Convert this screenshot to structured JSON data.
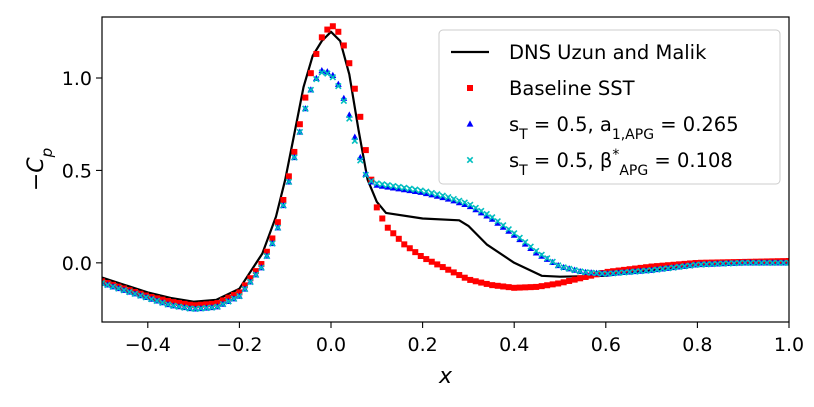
{
  "chart_data": {
    "type": "line",
    "title": "",
    "xlabel": "x",
    "ylabel": "−C_p",
    "xlim": [
      -0.5,
      1.0
    ],
    "ylim": [
      -0.32,
      1.33
    ],
    "xticks": [
      -0.4,
      -0.2,
      0.0,
      0.2,
      0.4,
      0.6,
      0.8,
      1.0
    ],
    "xtick_labels": [
      "−0.4",
      "−0.2",
      "0.0",
      "0.2",
      "0.4",
      "0.6",
      "0.8",
      "1.0"
    ],
    "yticks": [
      0.0,
      0.5,
      1.0
    ],
    "ytick_labels": [
      "0.0",
      "0.5",
      "1.0"
    ],
    "grid": false,
    "legend_position": "top-right",
    "series": [
      {
        "name": "DNS Uzun and Malik",
        "marker": "line",
        "color": "#000000",
        "x": [
          -0.5,
          -0.45,
          -0.4,
          -0.35,
          -0.3,
          -0.25,
          -0.2,
          -0.15,
          -0.12,
          -0.1,
          -0.08,
          -0.06,
          -0.04,
          -0.02,
          0.0,
          0.02,
          0.04,
          0.06,
          0.08,
          0.1,
          0.12,
          0.2,
          0.28,
          0.3,
          0.34,
          0.4,
          0.46,
          0.5,
          0.6,
          0.7,
          0.8,
          0.9,
          1.0
        ],
        "y": [
          -0.08,
          -0.12,
          -0.16,
          -0.19,
          -0.21,
          -0.2,
          -0.14,
          0.05,
          0.25,
          0.45,
          0.7,
          0.95,
          1.12,
          1.2,
          1.25,
          1.2,
          1.02,
          0.72,
          0.45,
          0.33,
          0.27,
          0.24,
          0.23,
          0.2,
          0.1,
          0.0,
          -0.07,
          -0.075,
          -0.07,
          -0.04,
          -0.01,
          0.005,
          0.01
        ]
      },
      {
        "name": "Baseline SST",
        "marker": "square",
        "color": "#ff0000",
        "x": [
          -0.5,
          -0.45,
          -0.4,
          -0.35,
          -0.3,
          -0.25,
          -0.2,
          -0.15,
          -0.12,
          -0.1,
          -0.08,
          -0.06,
          -0.04,
          -0.02,
          0.0,
          0.02,
          0.04,
          0.06,
          0.08,
          0.1,
          0.12,
          0.16,
          0.2,
          0.25,
          0.3,
          0.35,
          0.4,
          0.45,
          0.5,
          0.55,
          0.6,
          0.7,
          0.8,
          0.9,
          1.0
        ],
        "y": [
          -0.1,
          -0.14,
          -0.18,
          -0.21,
          -0.23,
          -0.22,
          -0.16,
          0.0,
          0.18,
          0.38,
          0.6,
          0.85,
          1.07,
          1.22,
          1.29,
          1.24,
          1.08,
          0.85,
          0.55,
          0.3,
          0.2,
          0.1,
          0.03,
          -0.03,
          -0.09,
          -0.12,
          -0.135,
          -0.13,
          -0.11,
          -0.08,
          -0.05,
          -0.02,
          0.0,
          0.005,
          0.01
        ]
      },
      {
        "name": "s_T = 0.5, a_{1,APG} = 0.265",
        "marker": "triangle",
        "color": "#0000ff",
        "x": [
          -0.5,
          -0.45,
          -0.4,
          -0.35,
          -0.3,
          -0.25,
          -0.2,
          -0.15,
          -0.12,
          -0.1,
          -0.08,
          -0.06,
          -0.04,
          -0.02,
          0.0,
          0.02,
          0.04,
          0.06,
          0.08,
          0.1,
          0.15,
          0.2,
          0.25,
          0.3,
          0.35,
          0.4,
          0.45,
          0.5,
          0.55,
          0.6,
          0.7,
          0.8,
          0.9,
          1.0
        ],
        "y": [
          -0.11,
          -0.15,
          -0.19,
          -0.23,
          -0.25,
          -0.24,
          -0.18,
          -0.02,
          0.15,
          0.35,
          0.57,
          0.8,
          0.97,
          1.04,
          1.03,
          0.95,
          0.8,
          0.6,
          0.45,
          0.42,
          0.4,
          0.38,
          0.35,
          0.31,
          0.24,
          0.15,
          0.05,
          -0.02,
          -0.05,
          -0.06,
          -0.04,
          -0.01,
          0.0,
          0.0
        ]
      },
      {
        "name": "s_T = 0.5, β*_{APG} = 0.108",
        "marker": "x",
        "color": "#00bfbf",
        "x": [
          -0.5,
          -0.45,
          -0.4,
          -0.35,
          -0.3,
          -0.25,
          -0.2,
          -0.15,
          -0.12,
          -0.1,
          -0.08,
          -0.06,
          -0.04,
          -0.02,
          0.0,
          0.02,
          0.04,
          0.06,
          0.08,
          0.1,
          0.15,
          0.2,
          0.25,
          0.3,
          0.35,
          0.4,
          0.45,
          0.5,
          0.55,
          0.6,
          0.7,
          0.8,
          0.9,
          1.0
        ],
        "y": [
          -0.11,
          -0.15,
          -0.19,
          -0.23,
          -0.25,
          -0.24,
          -0.18,
          -0.02,
          0.15,
          0.35,
          0.57,
          0.8,
          0.97,
          1.03,
          1.02,
          0.94,
          0.78,
          0.58,
          0.45,
          0.43,
          0.41,
          0.39,
          0.36,
          0.32,
          0.25,
          0.16,
          0.06,
          -0.02,
          -0.05,
          -0.06,
          -0.04,
          -0.01,
          0.0,
          0.0
        ]
      }
    ],
    "legend": [
      {
        "label": "DNS Uzun and Malik"
      },
      {
        "label": "Baseline SST"
      },
      {
        "label": "s_T = 0.5, a_{1,APG} = 0.265"
      },
      {
        "label": "s_T = 0.5, β*_{APG} = 0.108"
      }
    ]
  }
}
